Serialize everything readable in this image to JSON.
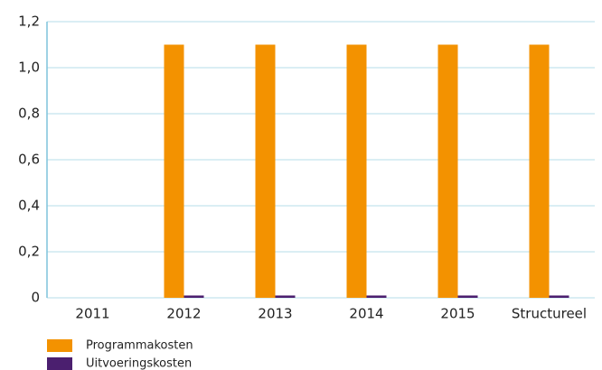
{
  "chart_data": {
    "type": "bar",
    "categories": [
      "2011",
      "2012",
      "2013",
      "2014",
      "2015",
      "Structureel"
    ],
    "series": [
      {
        "name": "Programmakosten",
        "color": "#f39200",
        "values": [
          0,
          1.1,
          1.1,
          1.1,
          1.1,
          1.1
        ]
      },
      {
        "name": "Uitvoeringskosten",
        "color": "#4b1f6f",
        "values": [
          0,
          0.01,
          0.01,
          0.01,
          0.01,
          0.01
        ]
      }
    ],
    "ylim": [
      0,
      1.2
    ],
    "yticks": [
      0,
      {
        "value": 0.2,
        "label": "0,2"
      },
      {
        "value": 0.4,
        "label": "0,4"
      },
      {
        "value": 0.6,
        "label": "0,6"
      },
      {
        "value": 0.8,
        "label": "0,8"
      },
      {
        "value": 1.0,
        "label": "1,0"
      },
      {
        "value": 1.2,
        "label": "1,2"
      }
    ],
    "grid": true
  }
}
